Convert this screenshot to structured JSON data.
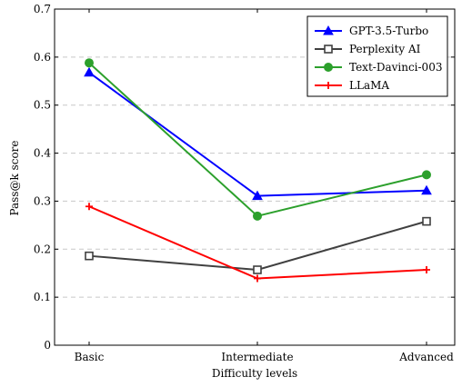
{
  "chart_data": {
    "type": "line",
    "categories": [
      "Basic",
      "Intermediate",
      "Advanced"
    ],
    "xlabel": "Difficulty levels",
    "ylabel": "Pass@k score",
    "ylim": [
      0,
      0.7
    ],
    "yticks": [
      "0",
      "0.1",
      "0.2",
      "0.3",
      "0.4",
      "0.5",
      "0.6",
      "0.7"
    ],
    "grid": true,
    "legend_position": "top-right",
    "series": [
      {
        "name": "GPT-3.5-Turbo",
        "values": [
          0.568,
          0.311,
          0.322
        ],
        "color": "#0000ff",
        "marker": "triangle"
      },
      {
        "name": "Perplexity AI",
        "values": [
          0.186,
          0.157,
          0.258
        ],
        "color": "#404040",
        "marker": "square"
      },
      {
        "name": "Text-Davinci-003",
        "values": [
          0.588,
          0.269,
          0.355
        ],
        "color": "#2ca02c",
        "marker": "circle"
      },
      {
        "name": "LLaMA",
        "values": [
          0.289,
          0.139,
          0.157
        ],
        "color": "#ff0000",
        "marker": "plus"
      }
    ]
  }
}
